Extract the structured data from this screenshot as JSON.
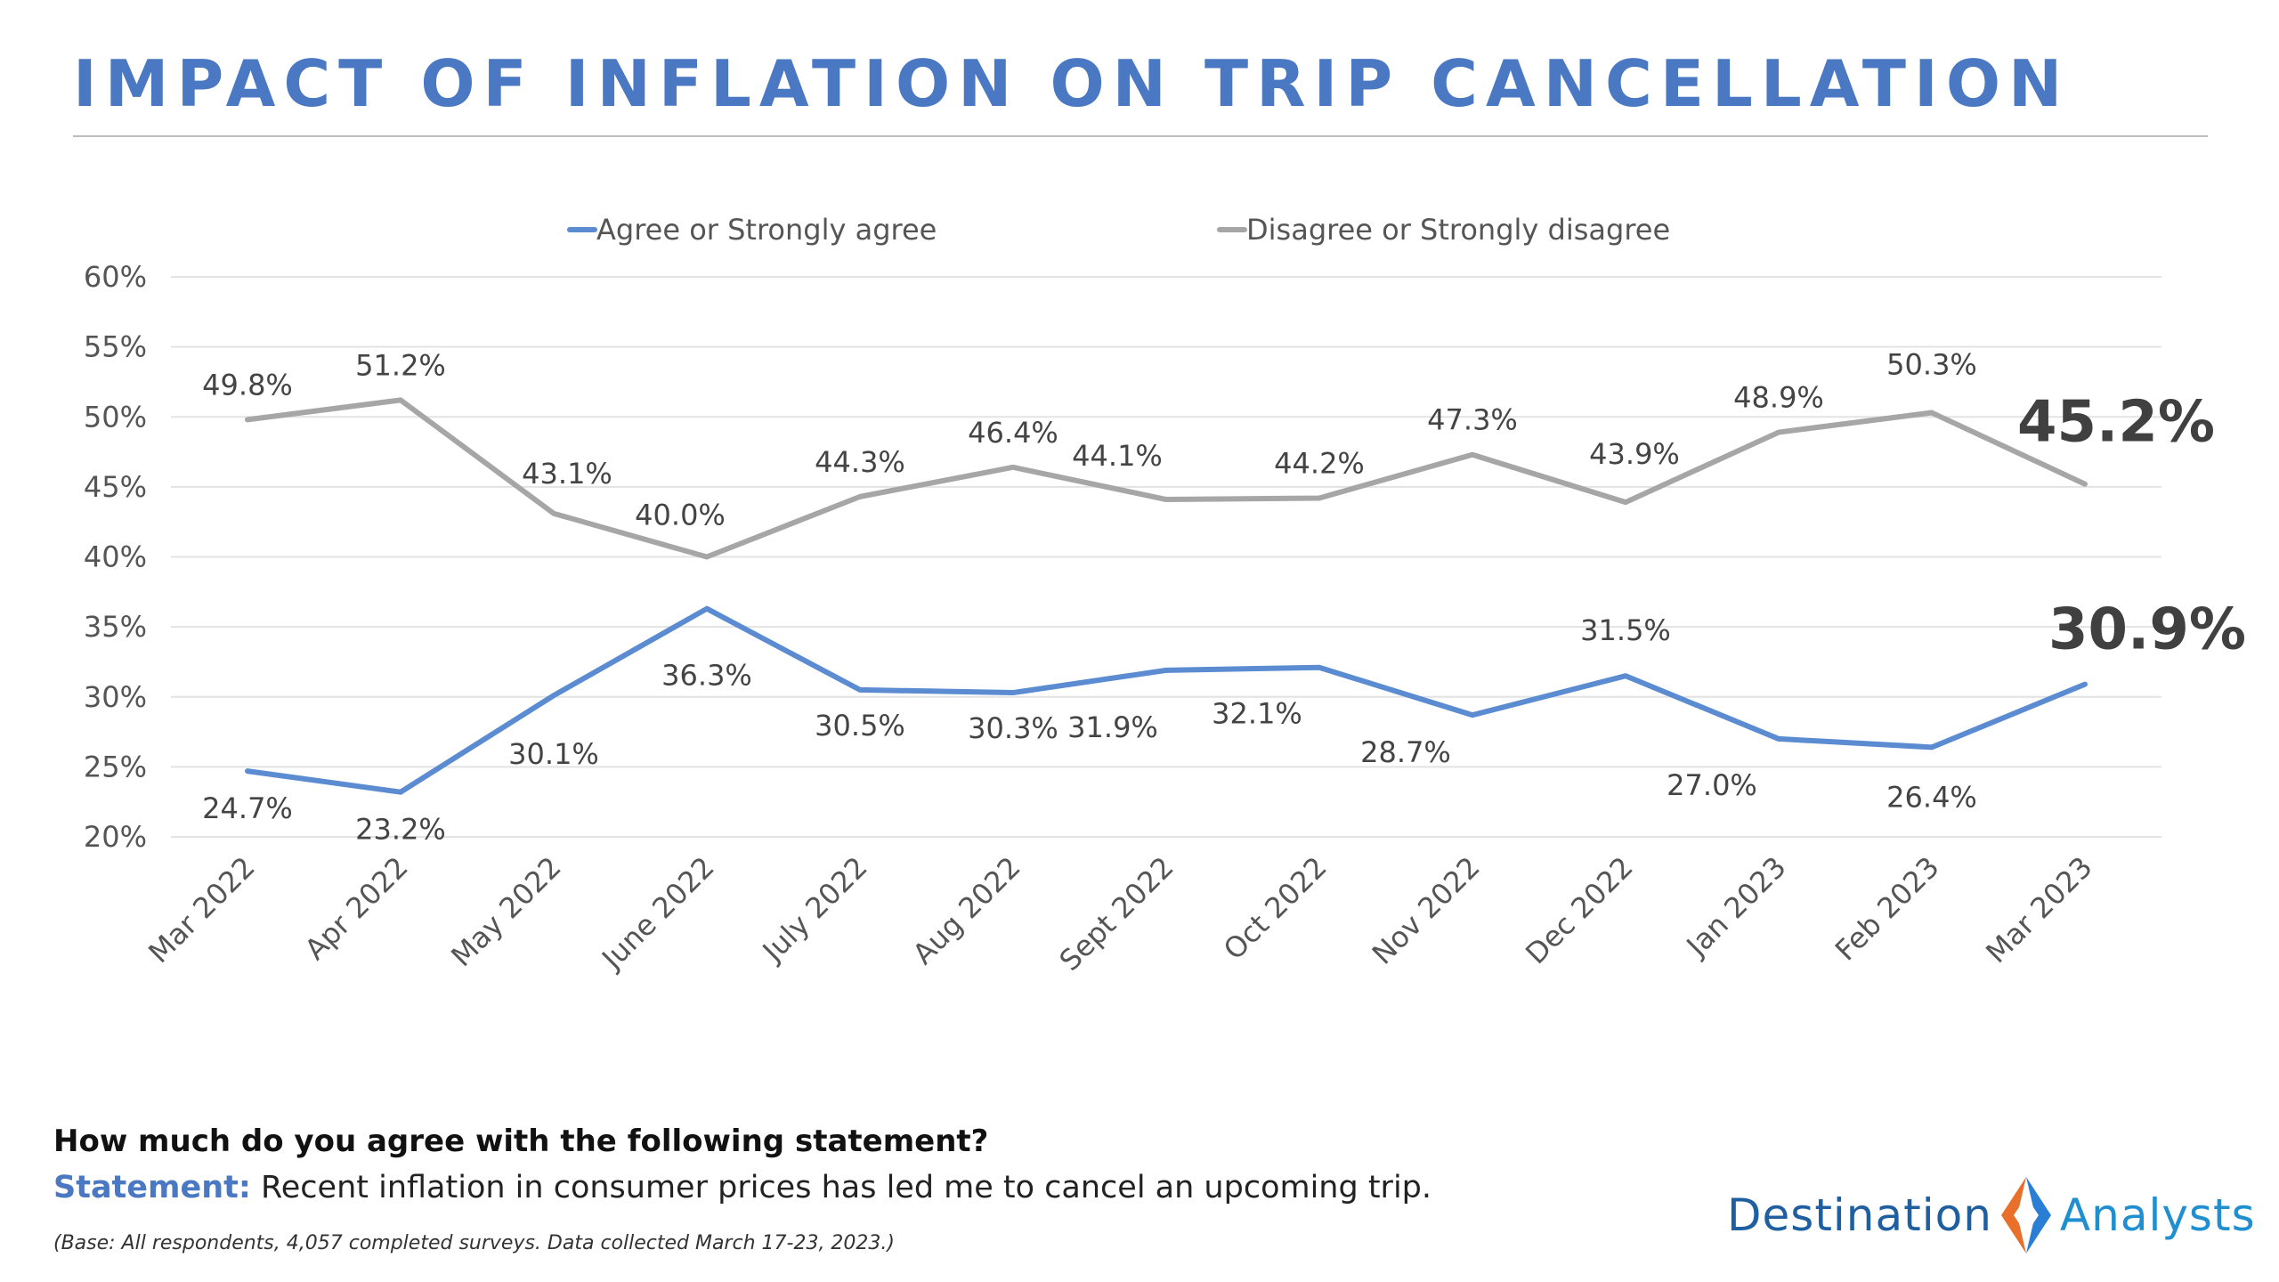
{
  "header": {
    "title": "IMPACT OF INFLATION ON TRIP CANCELLATION"
  },
  "footer": {
    "question": "How much do you agree with the following statement?",
    "statement_lead": "Statement:",
    "statement_text": " Recent inflation in consumer prices has led me to cancel an upcoming trip.",
    "base_note": "(Base: All respondents, 4,057 completed surveys. Data collected March 17-23, 2023.)"
  },
  "logo": {
    "word1": "Destination",
    "word2": "Analysts",
    "color1": "#1f5fa0",
    "color2": "#1f8fd0",
    "mark_colors": [
      "#e8702a",
      "#2a7fd4"
    ]
  },
  "chart_data": {
    "type": "line",
    "categories": [
      "Mar 2022",
      "Apr 2022",
      "May 2022",
      "June 2022",
      "July 2022",
      "Aug 2022",
      "Sept 2022",
      "Oct 2022",
      "Nov 2022",
      "Dec 2022",
      "Jan 2023",
      "Feb 2023",
      "Mar 2023"
    ],
    "series": [
      {
        "name": "Agree or Strongly agree",
        "color": "#5b8bd0",
        "values": [
          24.7,
          23.2,
          30.1,
          36.3,
          30.5,
          30.3,
          31.9,
          32.1,
          28.7,
          31.5,
          27.0,
          26.4,
          30.9
        ],
        "labels": [
          "24.7%",
          "23.2%",
          "30.1%",
          "36.3%",
          "30.5%",
          "30.3%",
          "31.9%",
          "32.1%",
          "28.7%",
          "31.5%",
          "27.0%",
          "26.4%",
          "30.9%"
        ]
      },
      {
        "name": "Disagree or Strongly disagree",
        "color": "#a6a6a6",
        "values": [
          49.8,
          51.2,
          43.1,
          40.0,
          44.3,
          46.4,
          44.1,
          44.2,
          47.3,
          43.9,
          48.9,
          50.3,
          45.2
        ],
        "labels": [
          "49.8%",
          "51.2%",
          "43.1%",
          "40.0%",
          "44.3%",
          "46.4%",
          "44.1%",
          "44.2%",
          "47.3%",
          "43.9%",
          "48.9%",
          "50.3%",
          "45.2%"
        ]
      }
    ],
    "yticks": [
      "20%",
      "25%",
      "30%",
      "35%",
      "40%",
      "45%",
      "50%",
      "55%",
      "60%"
    ],
    "ylim": [
      20,
      60
    ],
    "grid": true,
    "legend": "top-center"
  }
}
